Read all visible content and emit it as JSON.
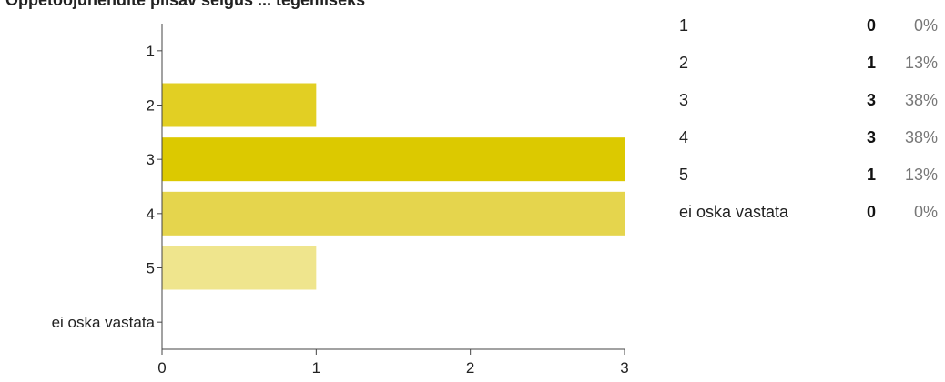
{
  "question_title": "Oppetööjuhendite piisav selgus ... tegemiseks",
  "chart_data": {
    "type": "bar",
    "orientation": "horizontal",
    "categories": [
      "1",
      "2",
      "3",
      "4",
      "5",
      "ei oska vastata"
    ],
    "values": [
      0,
      1,
      3,
      3,
      1,
      0
    ],
    "xlim": [
      0,
      3
    ],
    "xticks": [
      "0",
      "1",
      "2",
      "3"
    ],
    "grid": false,
    "legend": "none",
    "bar_colors": [
      "#f1ea99",
      "#e2cf23",
      "#dcc900",
      "#e5d54d",
      "#efe58d",
      "#f5f0b9"
    ]
  },
  "summary": [
    {
      "label": "1",
      "count": "0",
      "percent": "0%"
    },
    {
      "label": "2",
      "count": "1",
      "percent": "13%"
    },
    {
      "label": "3",
      "count": "3",
      "percent": "38%"
    },
    {
      "label": "4",
      "count": "3",
      "percent": "38%"
    },
    {
      "label": "5",
      "count": "1",
      "percent": "13%"
    },
    {
      "label": "ei oska vastata",
      "count": "0",
      "percent": "0%"
    }
  ]
}
